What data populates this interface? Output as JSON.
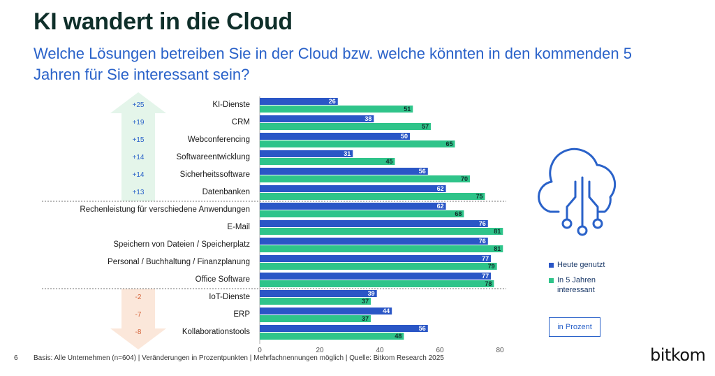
{
  "title": "KI wandert in die Cloud",
  "subtitle": "Welche Lösungen betreiben Sie in der Cloud bzw. welche könnten in den kommenden 5 Jahren für Sie interessant sein?",
  "page_number": "6",
  "footer": "Basis: Alle Unternehmen (n=604) | Veränderungen in Prozentpunkten | Mehrfachnennungen möglich | Quelle: Bitkom Research 2025",
  "logo_text": "bitkom",
  "legend": {
    "today": "Heute genutzt",
    "future": "In 5 Jahren interessant"
  },
  "unit_label": "in Prozent",
  "colors": {
    "today": "#2a56c6",
    "future": "#2fc48a",
    "up_arrow": "#e4f5ea",
    "down_arrow": "#fbe7da",
    "positive_change": "#2a62c9",
    "negative_change": "#d5643a",
    "icon": "#2a62c9"
  },
  "icon": "cloud-network-icon",
  "chart_data": {
    "type": "bar",
    "orientation": "horizontal",
    "categories": [
      "KI-Dienste",
      "CRM",
      "Webconferencing",
      "Softwareentwicklung",
      "Sicherheitssoftware",
      "Datenbanken",
      "Rechenleistung für verschiedene Anwendungen",
      "E-Mail",
      "Speichern von Dateien / Speicherplatz",
      "Personal / Buchhaltung / Finanzplanung",
      "Office Software",
      "IoT-Dienste",
      "ERP",
      "Kollaborationstools"
    ],
    "series": [
      {
        "name": "Heute genutzt",
        "values": [
          26,
          38,
          50,
          31,
          56,
          62,
          62,
          76,
          76,
          77,
          77,
          39,
          44,
          56
        ]
      },
      {
        "name": "In 5 Jahren interessant",
        "values": [
          51,
          57,
          65,
          45,
          70,
          75,
          68,
          81,
          81,
          79,
          78,
          37,
          37,
          48
        ]
      }
    ],
    "changes": [
      "+25",
      "+19",
      "+15",
      "+14",
      "+14",
      "+13",
      "",
      "",
      "",
      "",
      "",
      "-2",
      "-7",
      "-8"
    ],
    "group_breaks_after": [
      5,
      10
    ],
    "xlim": [
      0,
      85
    ],
    "xticks": [
      0,
      20,
      40,
      60,
      80
    ],
    "xlabel": "",
    "ylabel": ""
  }
}
